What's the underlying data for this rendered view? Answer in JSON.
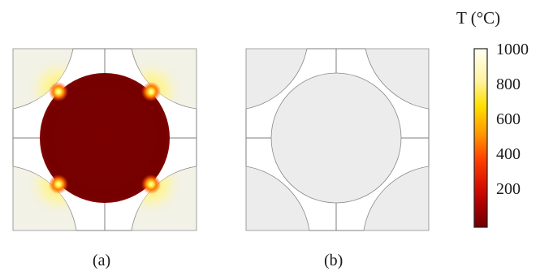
{
  "panels": [
    {
      "label": "(a)"
    },
    {
      "label": "(b)"
    }
  ],
  "colorbar": {
    "title": "T (°C)",
    "ticks": [
      "1000",
      "800",
      "600",
      "400",
      "200"
    ],
    "gradient": [
      "#fffff2",
      "#fff3a0",
      "#ffe000",
      "#ff9600",
      "#ff4000",
      "#dc1200",
      "#a80000",
      "#6e0000"
    ]
  },
  "colors": {
    "hot_corner": "#fffff0",
    "quarter_disk_a": "#f2f2e6",
    "center_disk_a": "#7a0000",
    "hot_spot": "#ffe600",
    "panel_b_fill": "#ececec",
    "frame_line": "#7f7f7f"
  }
}
